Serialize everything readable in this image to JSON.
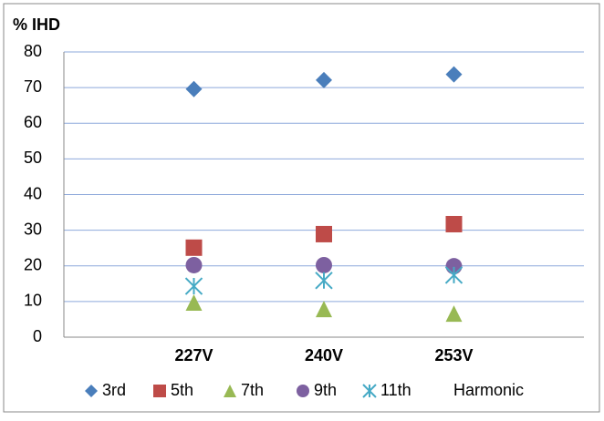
{
  "chart_data": {
    "type": "scatter-category",
    "y_axis_label": "% IHD",
    "categories": [
      "227V",
      "240V",
      "253V"
    ],
    "series": [
      {
        "name": "3rd",
        "color": "#4a7ebb",
        "marker": "diamond",
        "values": [
          69.6,
          72.1,
          73.7
        ]
      },
      {
        "name": "5th",
        "color": "#be4b48",
        "marker": "square",
        "values": [
          25.1,
          28.9,
          31.7
        ]
      },
      {
        "name": "7th",
        "color": "#98b954",
        "marker": "triangle",
        "values": [
          9.7,
          7.9,
          6.6
        ]
      },
      {
        "name": "9th",
        "color": "#7d60a0",
        "marker": "circle",
        "values": [
          20.2,
          20.2,
          19.9
        ]
      },
      {
        "name": "11th",
        "color": "#46aac5",
        "marker": "star",
        "values": [
          14.3,
          15.9,
          17.4
        ]
      },
      {
        "name": "Harmonic",
        "color": null,
        "marker": null,
        "values": [
          null,
          null,
          null
        ]
      }
    ],
    "ylim": [
      0,
      80
    ],
    "yticks": [
      0,
      10,
      20,
      30,
      40,
      50,
      60,
      70,
      80
    ],
    "grid": true,
    "legend": "bottom"
  }
}
